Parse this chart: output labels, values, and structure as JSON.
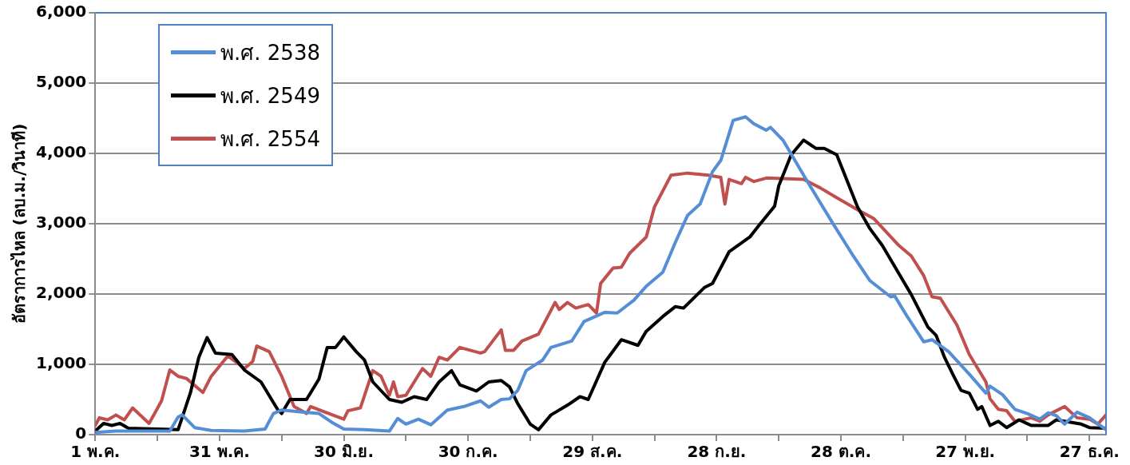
{
  "chart_data": {
    "type": "line",
    "ylabel": "อัตราการไหล (ลบ.ม./วินาที)",
    "xlim": [
      "--05-01",
      "--12-31"
    ],
    "ylim": [
      0,
      6000
    ],
    "xticks": [
      {
        "value": "--05-01",
        "label": "1 พ.ค."
      },
      {
        "value": "--05-16",
        "label": null
      },
      {
        "value": "--05-31",
        "label": "31 พ.ค."
      },
      {
        "value": "--06-15",
        "label": null
      },
      {
        "value": "--06-30",
        "label": "30 มิ.ย."
      },
      {
        "value": "--07-15",
        "label": null
      },
      {
        "value": "--07-30",
        "label": "30 ก.ค."
      },
      {
        "value": "--08-14",
        "label": null
      },
      {
        "value": "--08-29",
        "label": "29 ส.ค."
      },
      {
        "value": "--09-13",
        "label": null
      },
      {
        "value": "--09-28",
        "label": "28 ก.ย."
      },
      {
        "value": "--10-13",
        "label": null
      },
      {
        "value": "--10-28",
        "label": "28 ต.ค."
      },
      {
        "value": "--11-12",
        "label": null
      },
      {
        "value": "--11-27",
        "label": "27 พ.ย."
      },
      {
        "value": "--12-12",
        "label": null
      },
      {
        "value": "--12-27",
        "label": "27 ธ.ค."
      }
    ],
    "yticks": [
      {
        "value": 0,
        "label": "0"
      },
      {
        "value": 1000,
        "label": "1,000"
      },
      {
        "value": 2000,
        "label": "2,000"
      },
      {
        "value": 3000,
        "label": "3,000"
      },
      {
        "value": 4000,
        "label": "4,000"
      },
      {
        "value": 5000,
        "label": "5,000"
      },
      {
        "value": 6000,
        "label": "6,000"
      }
    ],
    "grid": "y",
    "legend": "top left",
    "marker": "none",
    "line_style": "solid",
    "series": [
      {
        "name": "พ.ศ. 2538",
        "color": "#558ed5",
        "x": [
          "--05-01",
          "--05-06",
          "--05-19",
          "--05-21",
          "--05-22",
          "--05-25",
          "--05-29",
          "--06-06",
          "--06-11",
          "--06-13",
          "--06-15",
          "--06-20",
          "--06-24",
          "--06-27",
          "--06-30",
          "--07-05",
          "--07-11",
          "--07-13",
          "--07-15",
          "--07-18",
          "--07-21",
          "--07-25",
          "--07-29",
          "--08-02",
          "--08-04",
          "--08-07",
          "--08-09",
          "--08-11",
          "--08-13",
          "--08-17",
          "--08-19",
          "--08-24",
          "--08-27",
          "--09-01",
          "--09-04",
          "--09-08",
          "--09-11",
          "--09-15",
          "--09-18",
          "--09-21",
          "--09-24",
          "--09-27",
          "--09-29",
          "--10-02",
          "--10-05",
          "--10-07",
          "--10-10",
          "--10-11",
          "--10-14",
          "--10-20",
          "--10-26",
          "--10-31",
          "--11-04",
          "--11-09",
          "--11-10",
          "--11-13",
          "--11-17",
          "--11-19",
          "--11-23",
          "--11-28",
          "--12-02",
          "--12-03",
          "--12-06",
          "--12-09",
          "--12-12",
          "--12-15",
          "--12-17",
          "--12-19",
          "--12-21",
          "--12-24",
          "--12-27",
          "--12-31"
        ],
        "values": [
          30,
          50,
          50,
          250,
          280,
          100,
          60,
          50,
          80,
          300,
          350,
          320,
          300,
          180,
          80,
          70,
          50,
          230,
          150,
          220,
          140,
          350,
          400,
          480,
          390,
          500,
          510,
          630,
          910,
          1060,
          1240,
          1330,
          1610,
          1740,
          1730,
          1910,
          2110,
          2310,
          2730,
          3120,
          3280,
          3740,
          3900,
          4470,
          4520,
          4420,
          4330,
          4370,
          4190,
          3590,
          3010,
          2540,
          2190,
          1960,
          1970,
          1680,
          1320,
          1350,
          1180,
          860,
          590,
          690,
          570,
          360,
          300,
          220,
          310,
          270,
          150,
          320,
          240,
          70
        ]
      },
      {
        "name": "พ.ศ. 2549",
        "color": "#000000",
        "x": [
          "--05-01",
          "--05-03",
          "--05-05",
          "--05-07",
          "--05-09",
          "--05-21",
          "--05-24",
          "--05-26",
          "--05-28",
          "--05-30",
          "--06-03",
          "--06-06",
          "--06-10",
          "--06-14",
          "--06-15",
          "--06-17",
          "--06-21",
          "--06-24",
          "--06-26",
          "--06-28",
          "--06-30",
          "--07-03",
          "--07-05",
          "--07-07",
          "--07-11",
          "--07-14",
          "--07-17",
          "--07-20",
          "--07-23",
          "--07-26",
          "--07-28",
          "--08-01",
          "--08-04",
          "--08-07",
          "--08-09",
          "--08-11",
          "--08-14",
          "--08-16",
          "--08-19",
          "--08-23",
          "--08-26",
          "--08-28",
          "--09-01",
          "--09-05",
          "--09-09",
          "--09-11",
          "--09-15",
          "--09-18",
          "--09-20",
          "--09-25",
          "--09-27",
          "--10-01",
          "--10-06",
          "--10-08",
          "--10-12",
          "--10-13",
          "--10-16",
          "--10-19",
          "--10-22",
          "--10-24",
          "--10-27",
          "--11-01",
          "--11-04",
          "--11-07",
          "--11-12",
          "--11-14",
          "--11-18",
          "--11-20",
          "--11-22",
          "--11-24",
          "--11-26",
          "--11-28",
          "--11-30",
          "--12-01",
          "--12-03",
          "--12-05",
          "--12-07",
          "--12-10",
          "--12-13",
          "--12-17",
          "--12-19",
          "--12-25",
          "--12-27",
          "--12-31"
        ],
        "values": [
          50,
          160,
          130,
          160,
          90,
          70,
          600,
          1100,
          1380,
          1160,
          1140,
          920,
          750,
          360,
          300,
          500,
          500,
          790,
          1240,
          1240,
          1390,
          1180,
          1060,
          750,
          500,
          460,
          540,
          500,
          750,
          910,
          710,
          620,
          750,
          770,
          680,
          440,
          150,
          70,
          280,
          420,
          540,
          500,
          1030,
          1350,
          1270,
          1470,
          1680,
          1820,
          1800,
          2090,
          2150,
          2600,
          2810,
          2960,
          3250,
          3540,
          3980,
          4190,
          4070,
          4070,
          3980,
          3240,
          2930,
          2690,
          2190,
          1990,
          1530,
          1410,
          1100,
          860,
          630,
          590,
          360,
          400,
          130,
          190,
          100,
          210,
          130,
          130,
          210,
          150,
          100,
          90
        ]
      },
      {
        "name": "พ.ศ. 2554",
        "color": "#c0504d",
        "x": [
          "--05-01",
          "--05-02",
          "--05-04",
          "--05-06",
          "--05-08",
          "--05-10",
          "--05-14",
          "--05-17",
          "--05-19",
          "--05-21",
          "--05-23",
          "--05-27",
          "--05-29",
          "--06-02",
          "--06-06",
          "--06-08",
          "--06-09",
          "--06-12",
          "--06-15",
          "--06-18",
          "--06-21",
          "--06-22",
          "--06-25",
          "--06-30",
          "--07-01",
          "--07-04",
          "--07-07",
          "--07-09",
          "--07-11",
          "--07-12",
          "--07-13",
          "--07-15",
          "--07-19",
          "--07-21",
          "--07-23",
          "--07-25",
          "--07-28",
          "--08-02",
          "--08-03",
          "--08-07",
          "--08-08",
          "--08-10",
          "--08-12",
          "--08-16",
          "--08-20",
          "--08-21",
          "--08-23",
          "--08-25",
          "--08-28",
          "--08-30",
          "--08-31",
          "--09-03",
          "--09-05",
          "--09-07",
          "--09-11",
          "--09-13",
          "--09-17",
          "--09-21",
          "--09-26",
          "--09-29",
          "--09-30",
          "--10-01",
          "--10-04",
          "--10-05",
          "--10-07",
          "--10-10",
          "--10-19",
          "--10-23",
          "--10-27",
          "--11-01",
          "--11-05",
          "--11-11",
          "--11-14",
          "--11-17",
          "--11-19",
          "--11-21",
          "--11-25",
          "--11-28",
          "--12-02",
          "--12-03",
          "--12-05",
          "--12-07",
          "--12-09",
          "--12-13",
          "--12-15",
          "--12-17",
          "--12-21",
          "--12-24",
          "--12-27",
          "--12-29",
          "--12-31"
        ],
        "values": [
          130,
          240,
          210,
          280,
          210,
          380,
          160,
          480,
          920,
          830,
          800,
          600,
          830,
          1120,
          940,
          1040,
          1260,
          1180,
          830,
          400,
          300,
          400,
          330,
          220,
          340,
          380,
          910,
          830,
          560,
          750,
          540,
          560,
          940,
          830,
          1100,
          1060,
          1240,
          1160,
          1180,
          1490,
          1200,
          1200,
          1330,
          1430,
          1880,
          1780,
          1880,
          1800,
          1850,
          1730,
          2150,
          2370,
          2380,
          2580,
          2810,
          3240,
          3690,
          3720,
          3690,
          3660,
          3280,
          3630,
          3570,
          3660,
          3600,
          3650,
          3630,
          3510,
          3370,
          3200,
          3070,
          2690,
          2540,
          2260,
          1960,
          1940,
          1560,
          1140,
          750,
          510,
          360,
          340,
          190,
          240,
          190,
          280,
          400,
          240,
          220,
          150,
          280
        ]
      }
    ]
  }
}
